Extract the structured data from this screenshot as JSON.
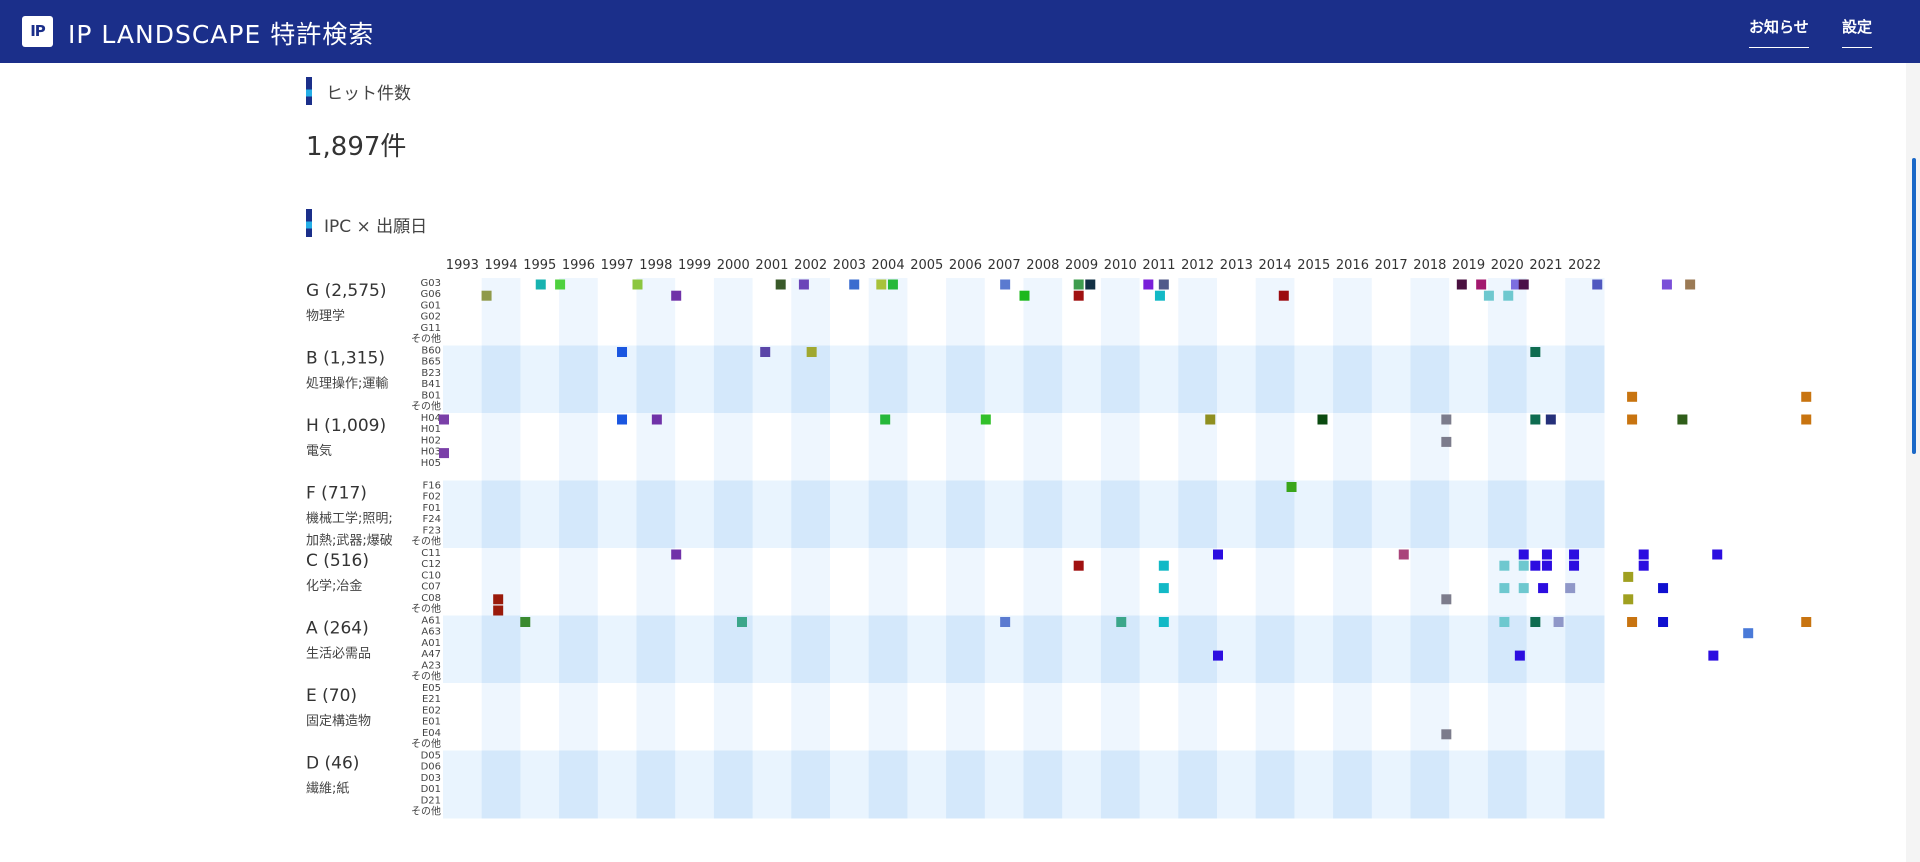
{
  "app": {
    "logo_text": "IP",
    "title": "IP LANDSCAPE 特許検索"
  },
  "nav": {
    "news_label": "お知らせ",
    "settings_label": "設定"
  },
  "hits": {
    "title": "ヒット件数",
    "value": "1,897件"
  },
  "matrix": {
    "title": "IPC × 出願日"
  },
  "colors": {
    "header_bg": "#1b2f8a",
    "band_light": "#eef6fe",
    "band_dark": "#d4e8fb"
  },
  "chart_data": {
    "type": "heatmap",
    "years": [
      "1993",
      "1994",
      "1995",
      "1996",
      "1997",
      "1998",
      "1999",
      "2000",
      "2001",
      "2002",
      "2003",
      "2004",
      "2005",
      "2006",
      "2007",
      "2008",
      "2009",
      "2010",
      "2011",
      "2012",
      "2013",
      "2014",
      "2015",
      "2016",
      "2017",
      "2018",
      "2019",
      "2020",
      "2021",
      "2022"
    ],
    "sections": [
      {
        "code": "G (2,575)",
        "desc": [
          "物理学"
        ],
        "subclasses": [
          "G03",
          "G06",
          "G01",
          "G02",
          "G11",
          "その他"
        ]
      },
      {
        "code": "B (1,315)",
        "desc": [
          "処理操作;運輸"
        ],
        "subclasses": [
          "B60",
          "B65",
          "B23",
          "B41",
          "B01",
          "その他"
        ]
      },
      {
        "code": "H (1,009)",
        "desc": [
          "電気"
        ],
        "subclasses": [
          "H04",
          "H01",
          "H02",
          "H03",
          "H05"
        ]
      },
      {
        "code": "F (717)",
        "desc": [
          "機械工学;照明;",
          "加熱;武器;爆破"
        ],
        "subclasses": [
          "F16",
          "F02",
          "F01",
          "F24",
          "F23",
          "その他"
        ]
      },
      {
        "code": "C (516)",
        "desc": [
          "化学;冶金"
        ],
        "subclasses": [
          "C11",
          "C12",
          "C10",
          "C07",
          "C08",
          "その他"
        ]
      },
      {
        "code": "A (264)",
        "desc": [
          "生活必需品"
        ],
        "subclasses": [
          "A61",
          "A63",
          "A01",
          "A47",
          "A23",
          "その他"
        ]
      },
      {
        "code": "E (70)",
        "desc": [
          "固定構造物"
        ],
        "subclasses": [
          "E05",
          "E21",
          "E02",
          "E01",
          "E04",
          "その他"
        ]
      },
      {
        "code": "D (46)",
        "desc": [
          "繊維;紙"
        ],
        "subclasses": [
          "D05",
          "D06",
          "D03",
          "D01",
          "D21",
          "その他"
        ]
      }
    ],
    "cells": [
      {
        "section": 0,
        "row": 0,
        "year": 2.5,
        "color": "#17b3b0"
      },
      {
        "section": 0,
        "row": 0,
        "year": 3.0,
        "color": "#4fd13f"
      },
      {
        "section": 0,
        "row": 0,
        "year": 5.0,
        "color": "#8cc63f"
      },
      {
        "section": 0,
        "row": 0,
        "year": 8.7,
        "color": "#3a5a2a"
      },
      {
        "section": 0,
        "row": 0,
        "year": 9.3,
        "color": "#6b45b8"
      },
      {
        "section": 0,
        "row": 0,
        "year": 10.6,
        "color": "#3b6ccf"
      },
      {
        "section": 0,
        "row": 0,
        "year": 11.3,
        "color": "#a8c23a"
      },
      {
        "section": 0,
        "row": 0,
        "year": 11.6,
        "color": "#26b83a"
      },
      {
        "section": 0,
        "row": 0,
        "year": 14.5,
        "color": "#5a7ad0"
      },
      {
        "section": 0,
        "row": 0,
        "year": 16.4,
        "color": "#3e9c4e"
      },
      {
        "section": 0,
        "row": 0,
        "year": 16.7,
        "color": "#123044"
      },
      {
        "section": 0,
        "row": 0,
        "year": 18.2,
        "color": "#7a1fd9"
      },
      {
        "section": 0,
        "row": 0,
        "year": 18.6,
        "color": "#515a8a"
      },
      {
        "section": 0,
        "row": 0,
        "year": 26.3,
        "color": "#4a1040"
      },
      {
        "section": 0,
        "row": 0,
        "year": 26.8,
        "color": "#a3196e"
      },
      {
        "section": 0,
        "row": 0,
        "year": 27.7,
        "color": "#7c6ee0"
      },
      {
        "section": 0,
        "row": 0,
        "year": 27.9,
        "color": "#4a1048"
      },
      {
        "section": 0,
        "row": 0,
        "year": 29.8,
        "color": "#5058c0"
      },
      {
        "section": 0,
        "row": 0,
        "year": 31.6,
        "color": "#7a4fd8"
      },
      {
        "section": 0,
        "row": 0,
        "year": 32.2,
        "color": "#9b7a55"
      },
      {
        "section": 0,
        "row": 1,
        "year": 1.1,
        "color": "#8f9a4a"
      },
      {
        "section": 0,
        "row": 1,
        "year": 6.0,
        "color": "#7032a8"
      },
      {
        "section": 0,
        "row": 1,
        "year": 15.0,
        "color": "#1db81d"
      },
      {
        "section": 0,
        "row": 1,
        "year": 16.4,
        "color": "#a01010"
      },
      {
        "section": 0,
        "row": 1,
        "year": 18.5,
        "color": "#12b9c6"
      },
      {
        "section": 0,
        "row": 1,
        "year": 21.7,
        "color": "#9b0b10"
      },
      {
        "section": 0,
        "row": 1,
        "year": 27.0,
        "color": "#6ec8cf"
      },
      {
        "section": 0,
        "row": 1,
        "year": 27.5,
        "color": "#6ec8cf"
      },
      {
        "section": 1,
        "row": 0,
        "year": 4.6,
        "color": "#1a56e0"
      },
      {
        "section": 1,
        "row": 0,
        "year": 8.3,
        "color": "#5a45a8"
      },
      {
        "section": 1,
        "row": 0,
        "year": 9.5,
        "color": "#a0a830"
      },
      {
        "section": 1,
        "row": 0,
        "year": 28.2,
        "color": "#0f6c50"
      },
      {
        "section": 1,
        "row": 4,
        "year": 30.7,
        "color": "#c87410"
      },
      {
        "section": 1,
        "row": 4,
        "year": 35.2,
        "color": "#c87410"
      },
      {
        "section": 2,
        "row": 0,
        "year": 0.0,
        "color": "#7a3fa8"
      },
      {
        "section": 2,
        "row": 0,
        "year": 4.6,
        "color": "#1a56e0"
      },
      {
        "section": 2,
        "row": 0,
        "year": 5.5,
        "color": "#7032a8"
      },
      {
        "section": 2,
        "row": 0,
        "year": 11.4,
        "color": "#26b83a"
      },
      {
        "section": 2,
        "row": 0,
        "year": 14.0,
        "color": "#32c02a"
      },
      {
        "section": 2,
        "row": 0,
        "year": 19.8,
        "color": "#8f8f20"
      },
      {
        "section": 2,
        "row": 0,
        "year": 22.7,
        "color": "#0a4a10"
      },
      {
        "section": 2,
        "row": 0,
        "year": 25.9,
        "color": "#7c7c8c"
      },
      {
        "section": 2,
        "row": 0,
        "year": 28.2,
        "color": "#0f6c50"
      },
      {
        "section": 2,
        "row": 0,
        "year": 28.6,
        "color": "#25307a"
      },
      {
        "section": 2,
        "row": 0,
        "year": 30.7,
        "color": "#c87410"
      },
      {
        "section": 2,
        "row": 0,
        "year": 32.0,
        "color": "#2f5e1a"
      },
      {
        "section": 2,
        "row": 0,
        "year": 35.2,
        "color": "#c87410"
      },
      {
        "section": 2,
        "row": 2,
        "year": 25.9,
        "color": "#7c7c8c"
      },
      {
        "section": 2,
        "row": 3,
        "year": 0.0,
        "color": "#7a3fa8"
      },
      {
        "section": 3,
        "row": 0,
        "year": 21.9,
        "color": "#3aa51a"
      },
      {
        "section": 4,
        "row": 0,
        "year": 6.0,
        "color": "#7032a8"
      },
      {
        "section": 4,
        "row": 0,
        "year": 20.0,
        "color": "#2c0de0"
      },
      {
        "section": 4,
        "row": 0,
        "year": 24.8,
        "color": "#a9447a"
      },
      {
        "section": 4,
        "row": 0,
        "year": 27.9,
        "color": "#2c0de0"
      },
      {
        "section": 4,
        "row": 0,
        "year": 28.5,
        "color": "#2c0de0"
      },
      {
        "section": 4,
        "row": 0,
        "year": 29.2,
        "color": "#2c0de0"
      },
      {
        "section": 4,
        "row": 0,
        "year": 31.0,
        "color": "#2c0de0"
      },
      {
        "section": 4,
        "row": 0,
        "year": 32.9,
        "color": "#2c0de0"
      },
      {
        "section": 4,
        "row": 1,
        "year": 16.4,
        "color": "#a01010"
      },
      {
        "section": 4,
        "row": 1,
        "year": 18.6,
        "color": "#12b9c6"
      },
      {
        "section": 4,
        "row": 1,
        "year": 27.4,
        "color": "#6ec8cf"
      },
      {
        "section": 4,
        "row": 1,
        "year": 27.9,
        "color": "#6ec8cf"
      },
      {
        "section": 4,
        "row": 1,
        "year": 28.2,
        "color": "#2c0de0"
      },
      {
        "section": 4,
        "row": 1,
        "year": 28.5,
        "color": "#2c0de0"
      },
      {
        "section": 4,
        "row": 1,
        "year": 29.2,
        "color": "#2c0de0"
      },
      {
        "section": 4,
        "row": 1,
        "year": 31.0,
        "color": "#2c0de0"
      },
      {
        "section": 4,
        "row": 2,
        "year": 30.6,
        "color": "#a0a020"
      },
      {
        "section": 4,
        "row": 3,
        "year": 18.6,
        "color": "#12b9c6"
      },
      {
        "section": 4,
        "row": 3,
        "year": 27.4,
        "color": "#6ec8cf"
      },
      {
        "section": 4,
        "row": 3,
        "year": 27.9,
        "color": "#6ec8cf"
      },
      {
        "section": 4,
        "row": 3,
        "year": 28.4,
        "color": "#2c0de0"
      },
      {
        "section": 4,
        "row": 3,
        "year": 29.1,
        "color": "#8f97c8"
      },
      {
        "section": 4,
        "row": 3,
        "year": 31.5,
        "color": "#1010d0"
      },
      {
        "section": 4,
        "row": 4,
        "year": 25.9,
        "color": "#7c7c8c"
      },
      {
        "section": 4,
        "row": 4,
        "year": 30.6,
        "color": "#a0a020"
      },
      {
        "section": 4,
        "row": 4,
        "year": 1.4,
        "color": "#9a1a0a"
      },
      {
        "section": 4,
        "row": 5,
        "year": 1.4,
        "color": "#9a1a0a"
      },
      {
        "section": 5,
        "row": 0,
        "year": 2.1,
        "color": "#3a8a30"
      },
      {
        "section": 5,
        "row": 0,
        "year": 7.7,
        "color": "#3ba68a"
      },
      {
        "section": 5,
        "row": 0,
        "year": 14.5,
        "color": "#5a7ad0"
      },
      {
        "section": 5,
        "row": 0,
        "year": 17.5,
        "color": "#3ba68a"
      },
      {
        "section": 5,
        "row": 0,
        "year": 18.6,
        "color": "#12b9c6"
      },
      {
        "section": 5,
        "row": 0,
        "year": 27.4,
        "color": "#6ec8cf"
      },
      {
        "section": 5,
        "row": 0,
        "year": 28.2,
        "color": "#0f6c50"
      },
      {
        "section": 5,
        "row": 0,
        "year": 28.8,
        "color": "#8f97c8"
      },
      {
        "section": 5,
        "row": 0,
        "year": 30.7,
        "color": "#c87410"
      },
      {
        "section": 5,
        "row": 0,
        "year": 31.5,
        "color": "#1010d0"
      },
      {
        "section": 5,
        "row": 0,
        "year": 35.2,
        "color": "#c87410"
      },
      {
        "section": 5,
        "row": 1,
        "year": 33.7,
        "color": "#4a7ad8"
      },
      {
        "section": 5,
        "row": 3,
        "year": 20.0,
        "color": "#2c0de0"
      },
      {
        "section": 5,
        "row": 3,
        "year": 27.8,
        "color": "#2c0de0"
      },
      {
        "section": 5,
        "row": 3,
        "year": 32.8,
        "color": "#2c0de0"
      },
      {
        "section": 6,
        "row": 4,
        "year": 25.9,
        "color": "#7c7c8c"
      }
    ]
  }
}
